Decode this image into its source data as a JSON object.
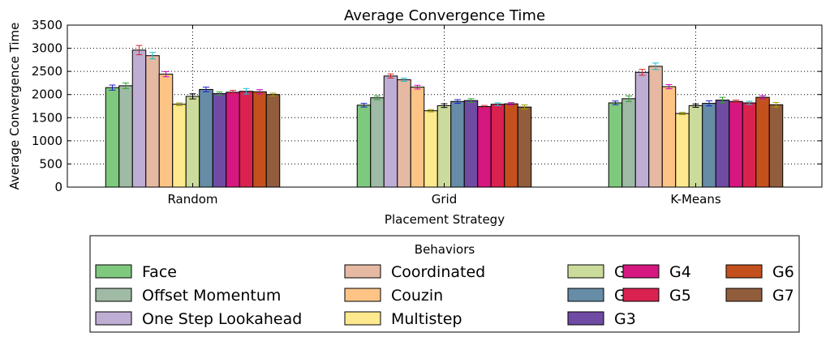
{
  "chart_data": {
    "type": "bar",
    "title": "Average Convergence Time",
    "xlabel": "Placement Strategy",
    "ylabel": "Average Convergence Time",
    "ylim": [
      0,
      3500
    ],
    "yticks": [
      0,
      500,
      1000,
      1500,
      2000,
      2500,
      3000,
      3500
    ],
    "grid": true,
    "error_bars": true,
    "categories": [
      "Random",
      "Grid",
      "K-Means"
    ],
    "legend_title": "Behaviors",
    "legend_position": "bottom",
    "series": [
      {
        "name": "Face",
        "color": "#7fc97f",
        "err_color": "#1f1fd0",
        "values": [
          2150,
          1770,
          1820
        ],
        "errors": [
          55,
          40,
          40
        ]
      },
      {
        "name": "Offset Momentum",
        "color": "#9fbaa5",
        "err_color": "#2ca02c",
        "values": [
          2190,
          1930,
          1910
        ],
        "errors": [
          60,
          40,
          60
        ]
      },
      {
        "name": "One Step Lookahead",
        "color": "#beaed4",
        "err_color": "#d62728",
        "values": [
          2960,
          2400,
          2480
        ],
        "errors": [
          100,
          45,
          65
        ]
      },
      {
        "name": "Coordinated",
        "color": "#e5b9a2",
        "err_color": "#17becf",
        "values": [
          2840,
          2320,
          2610
        ],
        "errors": [
          70,
          35,
          70
        ]
      },
      {
        "name": "Couzin",
        "color": "#fdc486",
        "err_color": "#c800c8",
        "values": [
          2440,
          2160,
          2170
        ],
        "errors": [
          55,
          40,
          45
        ]
      },
      {
        "name": "Multistep",
        "color": "#fee98e",
        "err_color": "#a0a000",
        "values": [
          1790,
          1650,
          1590
        ],
        "errors": [
          30,
          25,
          25
        ]
      },
      {
        "name": "G1",
        "color": "#cbdb9c",
        "err_color": "#000000",
        "values": [
          1960,
          1760,
          1760
        ],
        "errors": [
          55,
          40,
          35
        ]
      },
      {
        "name": "G2",
        "color": "#668ca6",
        "err_color": "#1f1fd0",
        "values": [
          2110,
          1850,
          1810
        ],
        "errors": [
          50,
          40,
          55
        ]
      },
      {
        "name": "G3",
        "color": "#6f4ba3",
        "err_color": "#2ca02c",
        "values": [
          2020,
          1870,
          1880
        ],
        "errors": [
          35,
          40,
          60
        ]
      },
      {
        "name": "G4",
        "color": "#d6177f",
        "err_color": "#d62728",
        "values": [
          2050,
          1740,
          1850
        ],
        "errors": [
          40,
          25,
          30
        ]
      },
      {
        "name": "G5",
        "color": "#d92250",
        "err_color": "#17becf",
        "values": [
          2070,
          1790,
          1820
        ],
        "errors": [
          60,
          30,
          35
        ]
      },
      {
        "name": "G6",
        "color": "#c4511d",
        "err_color": "#c800c8",
        "values": [
          2060,
          1800,
          1940
        ],
        "errors": [
          45,
          25,
          35
        ]
      },
      {
        "name": "G7",
        "color": "#925d3d",
        "err_color": "#a0a000",
        "values": [
          2000,
          1730,
          1780
        ],
        "errors": [
          30,
          45,
          50
        ]
      }
    ]
  }
}
